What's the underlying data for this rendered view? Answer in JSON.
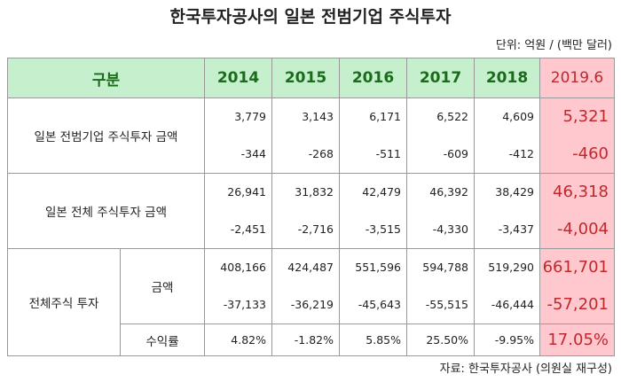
{
  "title": "한국투자공사의 일본 전범기업 주식투자",
  "unit": "단위: 억원 / (백만 달러)",
  "source": "자료: 한국투자공사 (의원실 재구성)",
  "table": {
    "header": [
      "구분",
      "2014",
      "2015",
      "2016",
      "2017",
      "2018",
      "2019.6"
    ],
    "rows": [
      {
        "label": "일본 전범기업 주식투자 금액",
        "lines": [
          [
            "3,779",
            "3,143",
            "6,171",
            "6,522",
            "4,609",
            "5,321"
          ],
          [
            "-344",
            "-268",
            "-511",
            "-609",
            "-412",
            "-460"
          ]
        ]
      },
      {
        "label": "일본 전체 주식투자 금액",
        "lines": [
          [
            "26,941",
            "31,832",
            "42,479",
            "46,392",
            "38,429",
            "46,318"
          ],
          [
            "-2,451",
            "-2,716",
            "-3,515",
            "-4,330",
            "-3,437",
            "-4,004"
          ]
        ]
      },
      {
        "label": "전체주식 투자",
        "sub": [
          {
            "label": "금액",
            "lines": [
              [
                "408,166",
                "424,487",
                "551,596",
                "594,788",
                "519,290",
                "661,701"
              ],
              [
                "-37,133",
                "-36,219",
                "-45,643",
                "-55,515",
                "-46,444",
                "-57,201"
              ]
            ]
          },
          {
            "label": "수익률",
            "lines": [
              [
                "4.82%",
                "-1.82%",
                "5.85%",
                "25.50%",
                "-9.95%",
                "17.05%"
              ]
            ]
          }
        ]
      }
    ]
  }
}
